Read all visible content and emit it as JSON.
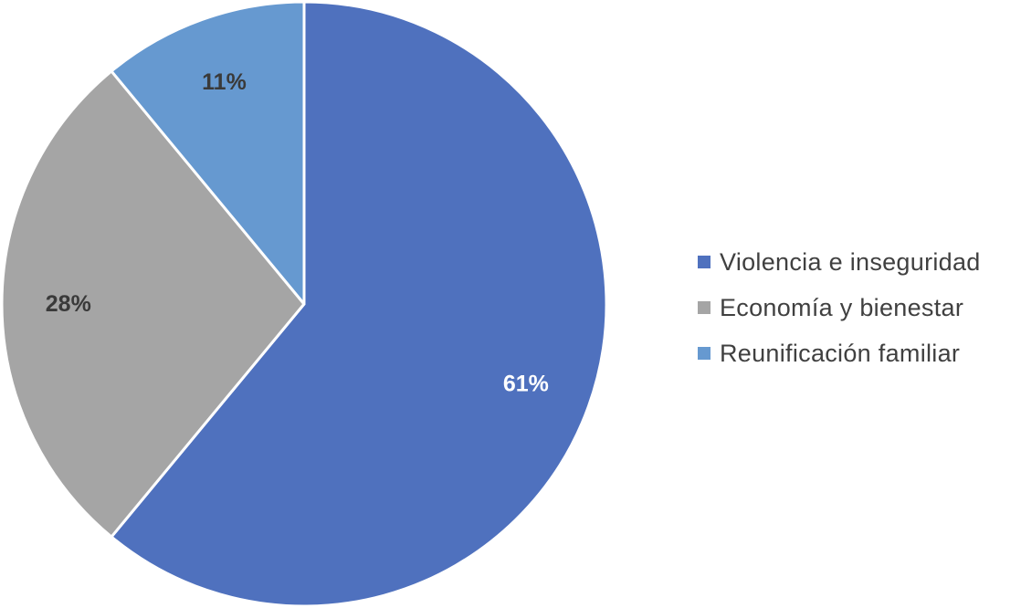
{
  "chart_data": {
    "type": "pie",
    "slices": [
      {
        "label": "Violencia e inseguridad",
        "value": 61,
        "display": "61%",
        "color": "#4f71be",
        "label_color": "#ffffff"
      },
      {
        "label": "Economía y bienestar",
        "value": 28,
        "display": "28%",
        "color": "#a5a5a5",
        "label_color": "#3a3a3a"
      },
      {
        "label": "Reunificación familiar",
        "value": 11,
        "display": "11%",
        "color": "#6699d0",
        "label_color": "#3a3a3a"
      }
    ],
    "start_angle": "12 o'clock",
    "direction": "clockwise",
    "legend_position": "right"
  }
}
